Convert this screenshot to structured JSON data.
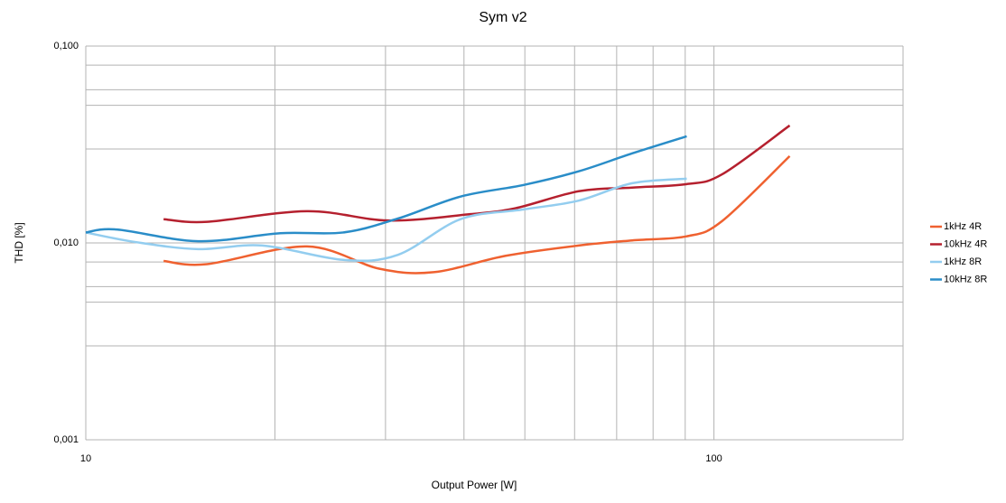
{
  "chart_data": {
    "type": "line",
    "title": "Sym v2",
    "x_label": "Output Power [W]",
    "y_label": "THD [%]",
    "xscale": "log",
    "yscale": "log",
    "grid": true,
    "legend": "right",
    "xlim": [
      10,
      200
    ],
    "ylim": [
      0.001,
      0.1
    ],
    "xticks": [
      10,
      100
    ],
    "yticks": [
      {
        "value": 0.001,
        "label": "0,001"
      },
      {
        "value": 0.01,
        "label": "0,010"
      },
      {
        "value": 0.1,
        "label": "0,100"
      }
    ],
    "xgrid": [
      20,
      30,
      40,
      50,
      60,
      70,
      80,
      90,
      200
    ],
    "ygrid": [
      0.003,
      0.005,
      0.006,
      0.008,
      0.03,
      0.05,
      0.06,
      0.08
    ],
    "series": [
      {
        "name": "1kHz 4R",
        "color": "#ef6130",
        "x": [
          13.3,
          15.6,
          22.5,
          29.3,
          35.8,
          46.6,
          60.9,
          74.1,
          90.5,
          103,
          132
        ],
        "values": [
          0.0081,
          0.0078,
          0.0096,
          0.0074,
          0.0071,
          0.0086,
          0.0097,
          0.0103,
          0.0108,
          0.0129,
          0.0276
        ]
      },
      {
        "name": "10kHz 4R",
        "color": "#b5202e",
        "x": [
          13.3,
          15.6,
          22.5,
          30.3,
          40.9,
          48.3,
          60.9,
          74.1,
          90.5,
          103,
          132
        ],
        "values": [
          0.0132,
          0.0128,
          0.0145,
          0.013,
          0.014,
          0.015,
          0.0183,
          0.0191,
          0.0199,
          0.0223,
          0.0395
        ]
      },
      {
        "name": "1kHz 8R",
        "color": "#93cdef",
        "x": [
          10,
          12,
          15.1,
          19.1,
          25.7,
          31.4,
          39.5,
          49.8,
          60.9,
          74.1,
          90.5
        ],
        "values": [
          0.0113,
          0.0101,
          0.0093,
          0.0097,
          0.0082,
          0.0087,
          0.0132,
          0.0148,
          0.0164,
          0.0201,
          0.0212
        ]
      },
      {
        "name": "10kHz 8R",
        "color": "#2a8dc8",
        "x": [
          10,
          11.2,
          15.1,
          20.4,
          25.7,
          31.4,
          39.5,
          49.8,
          60.9,
          74.1,
          90.5
        ],
        "values": [
          0.0113,
          0.0117,
          0.0102,
          0.0112,
          0.0113,
          0.0133,
          0.0172,
          0.0197,
          0.0231,
          0.0285,
          0.0348
        ]
      }
    ]
  }
}
